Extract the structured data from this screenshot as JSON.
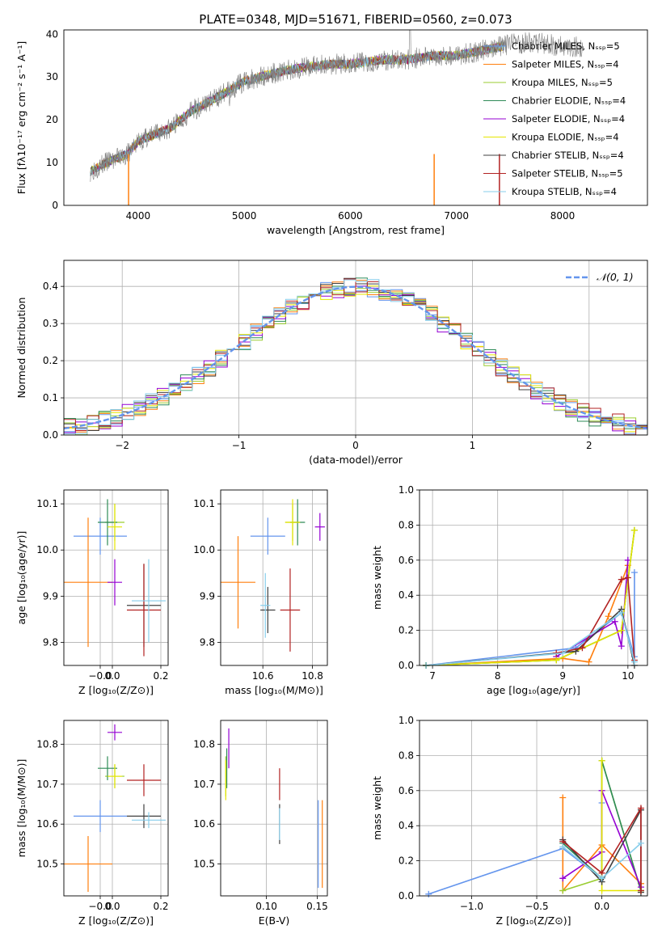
{
  "colors": {
    "chabrier_miles": "#6495ed",
    "salpeter_miles": "#ff7f0e",
    "kroupa_miles": "#9acd32",
    "chabrier_elodie": "#2e8b57",
    "salpeter_elodie": "#9400d3",
    "kroupa_elodie": "#e6e600",
    "chabrier_stelib": "#404040",
    "salpeter_stelib": "#b22222",
    "kroupa_stelib": "#87ceeb",
    "normal_fit": "#6495ed"
  },
  "chart_data": [
    {
      "id": "spectrum",
      "type": "line",
      "title": "PLATE=0348, MJD=51671, FIBERID=0560, z=0.073",
      "xlabel": "wavelength [Angstrom, rest frame]",
      "ylabel": "Flux [fλ10⁻¹⁷ erg cm⁻² s⁻¹ A⁻¹]",
      "xlim": [
        3300,
        8800
      ],
      "ylim": [
        0,
        41
      ],
      "xticks": [
        "4000",
        "5000",
        "6000",
        "7000",
        "8000"
      ],
      "yticks": [
        "0",
        "10",
        "20",
        "30",
        "40"
      ],
      "grid": false,
      "legend_position": "right",
      "legend": [
        "Chabrier MILES, Nₛₛₚ=5",
        "Salpeter MILES, Nₛₛₚ=4",
        "Kroupa MILES, Nₛₛₚ=5",
        "Chabrier ELODIE, Nₛₛₚ=4",
        "Salpeter ELODIE, Nₛₛₚ=4",
        "Kroupa ELODIE, Nₛₛₚ=4",
        "Chabrier STELIB, Nₛₛₚ=4",
        "Salpeter STELIB, Nₛₛₚ=5",
        "Kroupa STELIB, Nₛₛₚ=4"
      ],
      "continuum": {
        "x": [
          3550,
          3700,
          3900,
          4000,
          4100,
          4300,
          4500,
          4800,
          5000,
          5300,
          5500,
          5800,
          6000,
          6300,
          6500,
          6800,
          7000,
          7200,
          7400,
          7600,
          7800,
          8000,
          8200
        ],
        "y": [
          8,
          10,
          12,
          15,
          16,
          18,
          22,
          26,
          29,
          31,
          32,
          33,
          33,
          34,
          34,
          35,
          35,
          36,
          37,
          38,
          38,
          37,
          37
        ]
      }
    },
    {
      "id": "residuals",
      "type": "histogram",
      "xlabel": "(data-model)/error",
      "ylabel": "Normed distribution",
      "xlim": [
        -2.5,
        2.5
      ],
      "ylim": [
        0,
        0.47
      ],
      "xticks": [
        "−2",
        "−1",
        "0",
        "1",
        "2"
      ],
      "yticks": [
        "0.0",
        "0.1",
        "0.2",
        "0.3",
        "0.4"
      ],
      "grid": true,
      "legend_position": "top-right",
      "legend": [
        "𝒩(0, 1)"
      ],
      "gaussian": {
        "mean": 0,
        "sigma": 1
      },
      "bin_width": 0.1
    },
    {
      "id": "age_vs_Z",
      "type": "errorbar",
      "xlabel": "Z [log₁₀(Z/Z⊙)]",
      "ylabel": "age  [log₁₀(age/yr)]",
      "xlim": [
        -0.2,
        0.23
      ],
      "ylim": [
        9.75,
        10.13
      ],
      "xticks": [
        "−0.0",
        "0.0",
        "0.2"
      ],
      "yticks": [
        "9.8",
        "9.9",
        "10.0",
        "10.1"
      ],
      "grid": true,
      "points": [
        {
          "x": -0.05,
          "y": 10.03,
          "xerr": 0.11,
          "yerr": 0.04,
          "c": "chabrier_miles"
        },
        {
          "x": -0.1,
          "y": 9.93,
          "xerr": 0.1,
          "yerr": 0.14,
          "c": "salpeter_miles"
        },
        {
          "x": 0.01,
          "y": 10.06,
          "xerr": 0.04,
          "yerr": 0.04,
          "c": "kroupa_miles"
        },
        {
          "x": -0.02,
          "y": 10.06,
          "xerr": 0.04,
          "yerr": 0.05,
          "c": "chabrier_elodie"
        },
        {
          "x": 0.01,
          "y": 9.93,
          "xerr": 0.03,
          "yerr": 0.05,
          "c": "salpeter_elodie"
        },
        {
          "x": 0.01,
          "y": 10.05,
          "xerr": 0.03,
          "yerr": 0.05,
          "c": "kroupa_elodie"
        },
        {
          "x": 0.13,
          "y": 9.88,
          "xerr": 0.07,
          "yerr": 0.09,
          "c": "chabrier_stelib"
        },
        {
          "x": 0.13,
          "y": 9.87,
          "xerr": 0.07,
          "yerr": 0.1,
          "c": "salpeter_stelib"
        },
        {
          "x": 0.15,
          "y": 9.89,
          "xerr": 0.07,
          "yerr": 0.09,
          "c": "kroupa_stelib"
        }
      ]
    },
    {
      "id": "age_vs_mass",
      "type": "errorbar",
      "xlabel": "mass [log₁₀(M/M⊙)]",
      "ylabel": "",
      "xlim": [
        10.43,
        10.86
      ],
      "ylim": [
        9.75,
        10.13
      ],
      "xticks": [
        "10.6",
        "10.8"
      ],
      "yticks": [
        "9.8",
        "9.9",
        "10.0",
        "10.1"
      ],
      "grid": true,
      "points": [
        {
          "x": 10.62,
          "y": 10.03,
          "xerr": 0.07,
          "yerr": 0.04,
          "c": "chabrier_miles"
        },
        {
          "x": 10.5,
          "y": 9.93,
          "xerr": 0.07,
          "yerr": 0.1,
          "c": "salpeter_miles"
        },
        {
          "x": 10.72,
          "y": 10.06,
          "xerr": 0.03,
          "yerr": 0.04,
          "c": "kroupa_miles"
        },
        {
          "x": 10.74,
          "y": 10.06,
          "xerr": 0.03,
          "yerr": 0.05,
          "c": "chabrier_elodie"
        },
        {
          "x": 10.83,
          "y": 10.05,
          "xerr": 0.02,
          "yerr": 0.03,
          "c": "salpeter_elodie"
        },
        {
          "x": 10.72,
          "y": 10.06,
          "xerr": 0.03,
          "yerr": 0.05,
          "c": "kroupa_elodie"
        },
        {
          "x": 10.62,
          "y": 9.87,
          "xerr": 0.03,
          "yerr": 0.05,
          "c": "chabrier_stelib"
        },
        {
          "x": 10.71,
          "y": 9.87,
          "xerr": 0.04,
          "yerr": 0.09,
          "c": "salpeter_stelib"
        },
        {
          "x": 10.61,
          "y": 9.88,
          "xerr": 0.02,
          "yerr": 0.07,
          "c": "kroupa_stelib"
        }
      ]
    },
    {
      "id": "weight_vs_age",
      "type": "line",
      "xlabel": "age  [log₁₀(age/yr)]",
      "ylabel": "mass weight",
      "xlim": [
        6.8,
        10.3
      ],
      "ylim": [
        0,
        1
      ],
      "xticks": [
        "7",
        "8",
        "9",
        "10"
      ],
      "yticks": [
        "0.0",
        "0.2",
        "0.4",
        "0.6",
        "0.8",
        "1.0"
      ],
      "grid": true,
      "series": [
        {
          "c": "chabrier_miles",
          "x": [
            6.9,
            9.2,
            9.9,
            10.1,
            10.1
          ],
          "y": [
            0.0,
            0.1,
            0.3,
            0.05,
            0.53
          ]
        },
        {
          "c": "salpeter_miles",
          "x": [
            6.9,
            9.0,
            9.4,
            9.7,
            10.0
          ],
          "y": [
            0.0,
            0.04,
            0.02,
            0.28,
            0.57
          ]
        },
        {
          "c": "kroupa_miles",
          "x": [
            6.9,
            8.9,
            9.9,
            10.1
          ],
          "y": [
            0.0,
            0.03,
            0.2,
            0.77
          ]
        },
        {
          "c": "chabrier_elodie",
          "x": [
            6.9,
            8.9,
            9.9,
            10.1
          ],
          "y": [
            0.0,
            0.03,
            0.2,
            0.77
          ]
        },
        {
          "c": "salpeter_elodie",
          "x": [
            8.9,
            9.8,
            9.9,
            10.0
          ],
          "y": [
            0.05,
            0.25,
            0.11,
            0.6
          ]
        },
        {
          "c": "kroupa_elodie",
          "x": [
            6.9,
            8.9,
            9.9,
            10.1
          ],
          "y": [
            0.0,
            0.03,
            0.2,
            0.77
          ]
        },
        {
          "c": "chabrier_stelib",
          "x": [
            6.9,
            9.2,
            9.9,
            10.1
          ],
          "y": [
            0.0,
            0.08,
            0.32,
            0.0
          ]
        },
        {
          "c": "salpeter_stelib",
          "x": [
            8.9,
            9.3,
            9.9,
            10.0,
            10.1
          ],
          "y": [
            0.07,
            0.1,
            0.49,
            0.5,
            0.03
          ]
        },
        {
          "c": "kroupa_stelib",
          "x": [
            6.9,
            9.0,
            9.9,
            10.1
          ],
          "y": [
            0.0,
            0.07,
            0.3,
            0.02
          ]
        }
      ]
    },
    {
      "id": "mass_vs_Z",
      "type": "errorbar",
      "xlabel": "Z [log₁₀(Z/Z⊙)]",
      "ylabel": "mass [log₁₀(M/M⊙)]",
      "xlim": [
        -0.2,
        0.23
      ],
      "ylim": [
        10.42,
        10.86
      ],
      "xticks": [
        "−0.0",
        "0.0",
        "0.2"
      ],
      "yticks": [
        "10.5",
        "10.6",
        "10.7",
        "10.8"
      ],
      "grid": true,
      "points": [
        {
          "x": -0.05,
          "y": 10.62,
          "xerr": 0.11,
          "yerr": 0.04,
          "c": "chabrier_miles"
        },
        {
          "x": -0.1,
          "y": 10.5,
          "xerr": 0.1,
          "yerr": 0.07,
          "c": "salpeter_miles"
        },
        {
          "x": 0.01,
          "y": 10.72,
          "xerr": 0.04,
          "yerr": 0.03,
          "c": "kroupa_miles"
        },
        {
          "x": -0.02,
          "y": 10.74,
          "xerr": 0.04,
          "yerr": 0.03,
          "c": "chabrier_elodie"
        },
        {
          "x": 0.01,
          "y": 10.83,
          "xerr": 0.03,
          "yerr": 0.02,
          "c": "salpeter_elodie"
        },
        {
          "x": 0.01,
          "y": 10.72,
          "xerr": 0.03,
          "yerr": 0.03,
          "c": "kroupa_elodie"
        },
        {
          "x": 0.13,
          "y": 10.62,
          "xerr": 0.07,
          "yerr": 0.03,
          "c": "chabrier_stelib"
        },
        {
          "x": 0.13,
          "y": 10.71,
          "xerr": 0.07,
          "yerr": 0.04,
          "c": "salpeter_stelib"
        },
        {
          "x": 0.15,
          "y": 10.61,
          "xerr": 0.07,
          "yerr": 0.02,
          "c": "kroupa_stelib"
        }
      ]
    },
    {
      "id": "mass_vs_ebv",
      "type": "errorbar",
      "xlabel": "E(B-V)",
      "ylabel": "",
      "xlim": [
        0.055,
        0.16
      ],
      "ylim": [
        10.42,
        10.86
      ],
      "xticks": [
        "0.10",
        "0.15"
      ],
      "yticks": [
        "10.5",
        "10.6",
        "10.7",
        "10.8"
      ],
      "grid": true,
      "points": [
        {
          "x": 0.151,
          "y": 10.55,
          "xerr": 0,
          "yerr": 0.11,
          "c": "chabrier_miles"
        },
        {
          "x": 0.155,
          "y": 10.55,
          "xerr": 0,
          "yerr": 0.11,
          "c": "salpeter_miles"
        },
        {
          "x": 0.06,
          "y": 10.72,
          "xerr": 0,
          "yerr": 0.05,
          "c": "kroupa_miles"
        },
        {
          "x": 0.061,
          "y": 10.74,
          "xerr": 0,
          "yerr": 0.05,
          "c": "chabrier_elodie"
        },
        {
          "x": 0.063,
          "y": 10.79,
          "xerr": 0,
          "yerr": 0.05,
          "c": "salpeter_elodie"
        },
        {
          "x": 0.06,
          "y": 10.71,
          "xerr": 0,
          "yerr": 0.05,
          "c": "kroupa_elodie"
        },
        {
          "x": 0.113,
          "y": 10.6,
          "xerr": 0,
          "yerr": 0.05,
          "c": "chabrier_stelib"
        },
        {
          "x": 0.113,
          "y": 10.7,
          "xerr": 0,
          "yerr": 0.04,
          "c": "salpeter_stelib"
        },
        {
          "x": 0.113,
          "y": 10.6,
          "xerr": 0,
          "yerr": 0.04,
          "c": "kroupa_stelib"
        }
      ]
    },
    {
      "id": "weight_vs_Z",
      "type": "line",
      "xlabel": "Z [log₁₀(Z/Z⊙)]",
      "ylabel": "mass weight",
      "xlim": [
        -1.4,
        0.35
      ],
      "ylim": [
        0,
        1
      ],
      "xticks": [
        "−1.0",
        "−0.5",
        "0.0"
      ],
      "yticks": [
        "0.0",
        "0.2",
        "0.4",
        "0.6",
        "0.8",
        "1.0"
      ],
      "grid": true,
      "series": [
        {
          "c": "chabrier_miles",
          "x": [
            -1.33,
            -0.3,
            0.0,
            0.0
          ],
          "y": [
            0.01,
            0.27,
            0.1,
            0.53
          ]
        },
        {
          "c": "salpeter_miles",
          "x": [
            -0.3,
            -0.3,
            0.0,
            0.3,
            0.3
          ],
          "y": [
            0.56,
            0.03,
            0.29,
            0.07,
            0.03
          ]
        },
        {
          "c": "kroupa_miles",
          "x": [
            -0.3,
            0.0,
            0.0,
            0.3
          ],
          "y": [
            0.03,
            0.1,
            0.77,
            0.03
          ]
        },
        {
          "c": "chabrier_elodie",
          "x": [
            -0.3,
            0.0,
            0.0,
            0.3
          ],
          "y": [
            0.3,
            0.1,
            0.77,
            0.03
          ]
        },
        {
          "c": "salpeter_elodie",
          "x": [
            -0.3,
            0.0,
            0.0,
            0.3
          ],
          "y": [
            0.1,
            0.25,
            0.6,
            0.05
          ]
        },
        {
          "c": "kroupa_elodie",
          "x": [
            0.0,
            0.0,
            0.3
          ],
          "y": [
            0.77,
            0.03,
            0.03
          ]
        },
        {
          "c": "chabrier_stelib",
          "x": [
            -0.3,
            0.0,
            0.3,
            0.3
          ],
          "y": [
            0.32,
            0.08,
            0.49,
            0.02
          ]
        },
        {
          "c": "salpeter_stelib",
          "x": [
            -0.3,
            0.0,
            0.3,
            0.3
          ],
          "y": [
            0.31,
            0.13,
            0.5,
            0.03
          ]
        },
        {
          "c": "kroupa_stelib",
          "x": [
            -0.3,
            0.0,
            0.3
          ],
          "y": [
            0.28,
            0.1,
            0.3
          ]
        }
      ]
    }
  ]
}
